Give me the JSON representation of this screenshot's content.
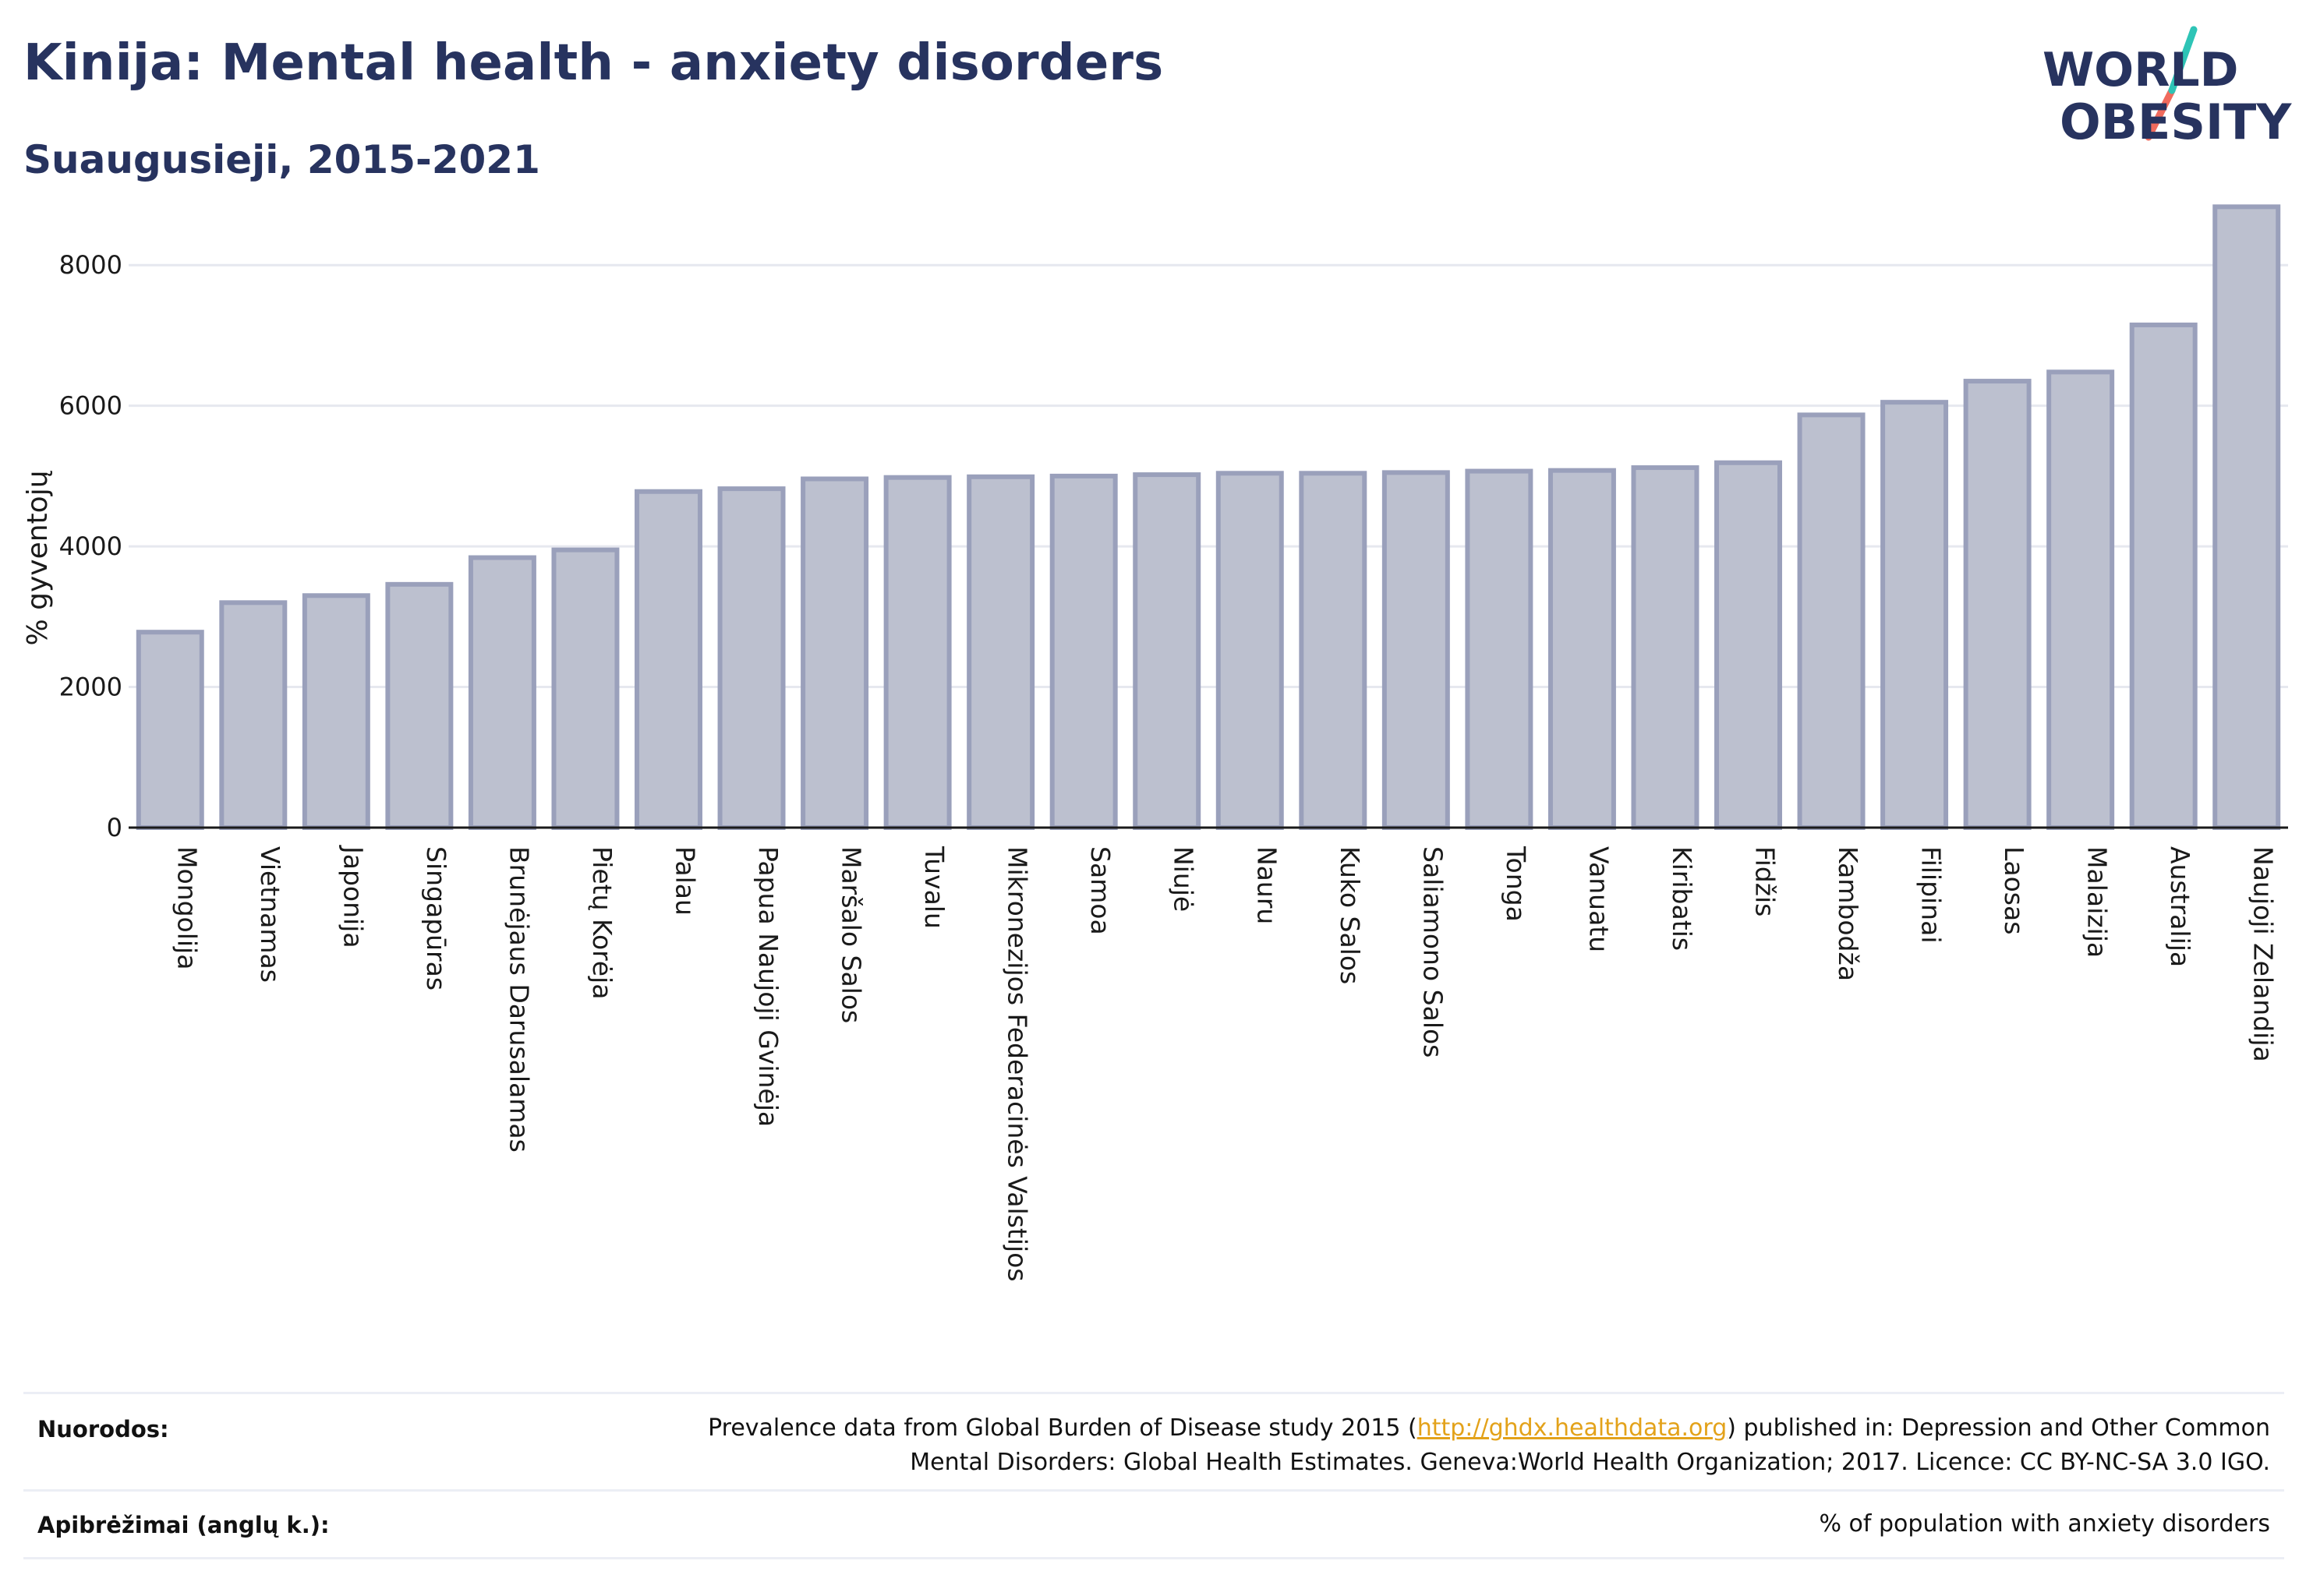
{
  "header": {
    "title": "Kinija: Mental health - anxiety disorders",
    "subtitle": "Suaugusieji, 2015-2021"
  },
  "logo": {
    "line1": "WORLD",
    "line2": "OBESITY",
    "colors": {
      "text": "#27335f",
      "slash_top": "#2ec4b6",
      "slash_bottom": "#f06b5d"
    }
  },
  "colors": {
    "bar_fill": "#bcc0cf",
    "bar_stroke": "#9aa0bb",
    "grid": "#e6e8ef",
    "axis": "#1a1a1a",
    "title": "#27335f",
    "link": "#e3a21a"
  },
  "chart_data": {
    "type": "bar",
    "title": "Kinija: Mental health - anxiety disorders",
    "subtitle": "Suaugusieji, 2015-2021",
    "xlabel": "",
    "ylabel": "% gyventojų",
    "ylim": [
      0,
      9000
    ],
    "yticks": [
      0,
      2000,
      4000,
      6000,
      8000
    ],
    "grid": true,
    "categories": [
      "Mongolija",
      "Vietnamas",
      "Japonija",
      "Singapūras",
      "Brunėjaus Darusalamas",
      "Pietų Korėja",
      "Palau",
      "Papua Naujoji Gvinėja",
      "Maršalo Salos",
      "Tuvalu",
      "Mikronezijos Federacinės Valstijos",
      "Samoa",
      "Niujė",
      "Nauru",
      "Kuko Salos",
      "Saliamono Salos",
      "Tonga",
      "Vanuatu",
      "Kiribatis",
      "Fidžis",
      "Kambodža",
      "Filipinai",
      "Laosas",
      "Malaizija",
      "Australija",
      "Naujoji Zelandija"
    ],
    "values": [
      2780,
      3200,
      3300,
      3460,
      3840,
      3950,
      4780,
      4820,
      4960,
      4980,
      4990,
      5000,
      5020,
      5040,
      5040,
      5050,
      5070,
      5080,
      5120,
      5190,
      5870,
      6050,
      6350,
      6480,
      7150,
      8830
    ]
  },
  "footer": {
    "sources_key": "Nuorodos:",
    "sources_pre": "Prevalence data from Global Burden of Disease study 2015 (",
    "sources_link": "http://ghdx.healthdata.org",
    "sources_post": ") published in: Depression and Other Common Mental Disorders: Global Health Estimates. Geneva:World Health Organization; 2017. Licence: CC BY-NC-SA 3.0 IGO.",
    "definitions_key": "Apibrėžimai (anglų k.):",
    "definitions_value": "% of population with anxiety disorders"
  }
}
